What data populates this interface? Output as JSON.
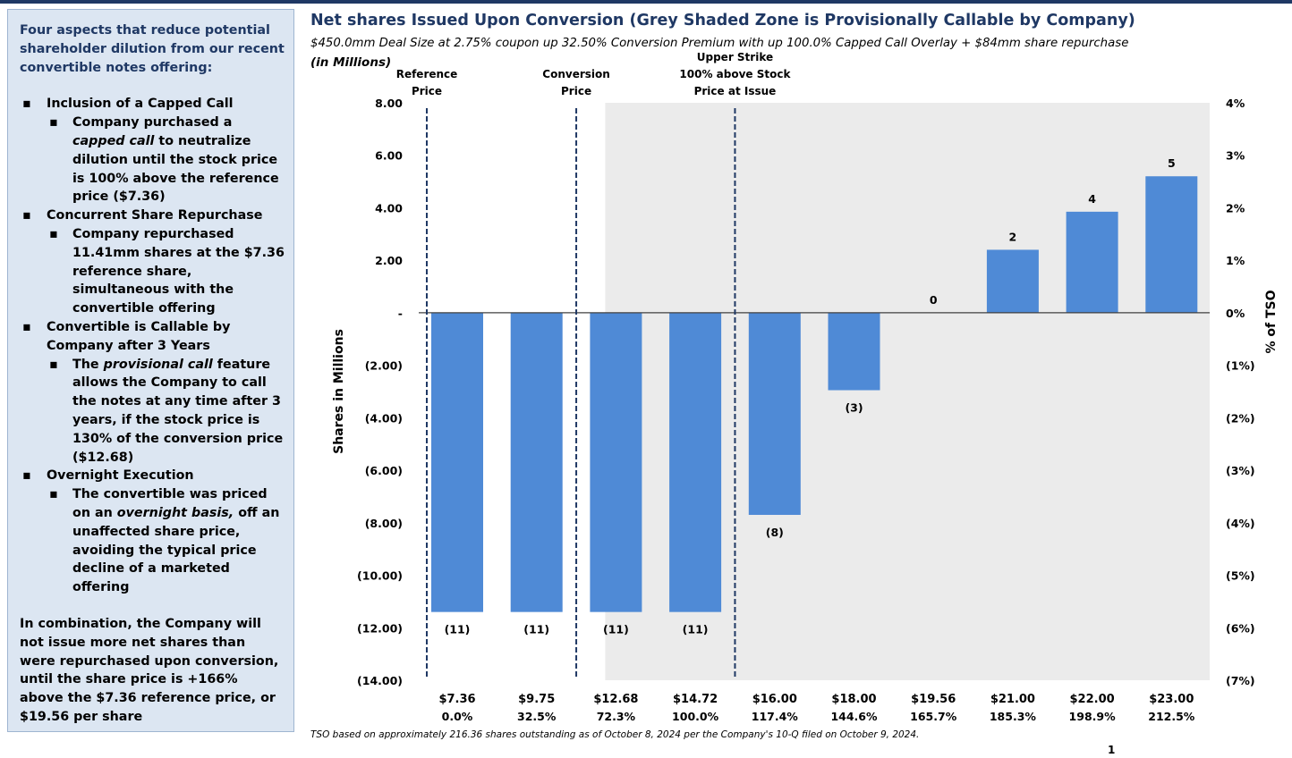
{
  "sidebar": {
    "intro": "Four aspects that reduce potential shareholder dilution from our recent convertible notes offering:",
    "items": [
      {
        "heading": "Inclusion of a Capped Call",
        "sub": [
          {
            "before": "Company purchased a ",
            "em": "capped call",
            "after": " to neutralize dilution until the stock price is 100% above the reference price ($7.36)"
          }
        ]
      },
      {
        "heading": "Concurrent Share Repurchase",
        "sub": [
          {
            "before": "Company repurchased 11.41mm shares at the $7.36 reference share, simultaneous with the convertible offering",
            "em": "",
            "after": ""
          }
        ]
      },
      {
        "heading": "Convertible is Callable by Company after 3 Years",
        "sub": [
          {
            "before": "The ",
            "em": "provisional call",
            "after": " feature allows the Company to call the notes at any time after 3 years, if the stock price is 130% of the conversion price ($12.68)"
          }
        ]
      },
      {
        "heading": "Overnight Execution",
        "sub": [
          {
            "before": "The convertible was priced on an ",
            "em": "overnight basis,",
            "after": " off an unaffected share price, avoiding the typical price decline of a marketed offering"
          }
        ]
      }
    ],
    "outro": "In combination, the Company will not issue more net shares than were repurchased upon conversion, until the share price is +166% above the $7.36 reference price, or $19.56 per share"
  },
  "chart_data": {
    "type": "bar",
    "title": "Net shares Issued Upon Conversion (Grey Shaded Zone is Provisionally Callable by Company)",
    "subtitle": "$450.0mm Deal Size at 2.75% coupon up 32.50% Conversion Premium with up 100.0% Capped Call Overlay + $84mm share repurchase",
    "unit_note": "(in Millions)",
    "ylabel": "Shares in Millions",
    "y2label": "% of TSO",
    "ylim": [
      -14,
      8
    ],
    "yticks": [
      8,
      6,
      4,
      2,
      0,
      -2,
      -4,
      -6,
      -8,
      -10,
      -12,
      -14
    ],
    "ytick_labels": [
      "8.00",
      "6.00",
      "4.00",
      "2.00",
      "-",
      "(2.00)",
      "(4.00)",
      "(6.00)",
      "(8.00)",
      "(10.00)",
      "(12.00)",
      "(14.00)"
    ],
    "y2tick_labels": [
      "4%",
      "3%",
      "2%",
      "1%",
      "0%",
      "(1%)",
      "(2%)",
      "(3%)",
      "(4%)",
      "(5%)",
      "(6%)",
      "(7%)"
    ],
    "categories": [
      "$7.36",
      "$9.75",
      "$12.68",
      "$14.72",
      "$16.00",
      "$18.00",
      "$19.56",
      "$21.00",
      "$22.00",
      "$23.00"
    ],
    "category_sublabels": [
      "0.0%",
      "32.5%",
      "72.3%",
      "100.0%",
      "117.4%",
      "144.6%",
      "165.7%",
      "185.3%",
      "198.9%",
      "212.5%"
    ],
    "values": [
      -11.4,
      -11.4,
      -11.4,
      -11.4,
      -7.7,
      -2.95,
      0,
      2.4,
      3.85,
      5.2
    ],
    "data_labels": [
      "(11)",
      "(11)",
      "(11)",
      "(11)",
      "(8)",
      "(3)",
      "0",
      "2",
      "4",
      "5"
    ],
    "shaded_zone_start_category": 2,
    "markers": [
      {
        "label_lines": [
          "Reference",
          "Price"
        ],
        "category": 0
      },
      {
        "label_lines": [
          "Conversion",
          "Price"
        ],
        "category": 1.5
      },
      {
        "label_lines": [
          "Upper Strike",
          "100% above Stock",
          "Price at Issue"
        ],
        "category": 3.5
      }
    ],
    "bar_color": "#4f8ad6",
    "shade_color": "#ebebeb",
    "grid": false
  },
  "footnote": "TSO based on approximately 216.36 shares outstanding as of October 8, 2024 per the Company's 10-Q filed on October 9, 2024.",
  "page_number": "1"
}
